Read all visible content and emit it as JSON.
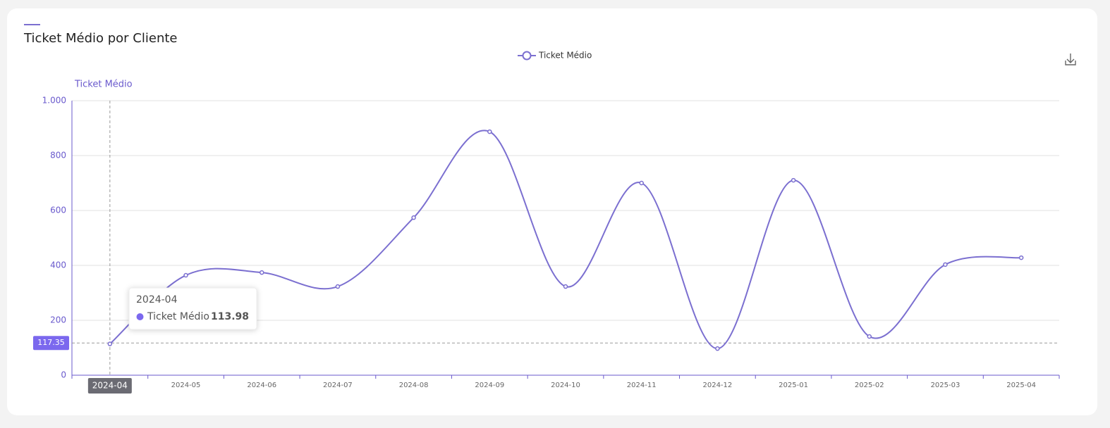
{
  "chart_data": {
    "type": "line",
    "title": "Ticket Médio por Cliente",
    "y_label": "Ticket Médio",
    "categories": [
      "2024-04",
      "2024-05",
      "2024-06",
      "2024-07",
      "2024-08",
      "2024-09",
      "2024-10",
      "2024-11",
      "2024-12",
      "2025-01",
      "2025-02",
      "2025-03",
      "2025-04"
    ],
    "series": [
      {
        "name": "Ticket Médio",
        "color": "#7b6fd0",
        "values": [
          113.98,
          364,
          374,
          323,
          574,
          887,
          323,
          700,
          97,
          710,
          141,
          403,
          428
        ]
      }
    ],
    "ylim": [
      0,
      1000
    ],
    "yticks": [
      0,
      200,
      400,
      600,
      800,
      {
        "value": 1000,
        "label": "1.000"
      }
    ],
    "grid": true,
    "smooth": true,
    "legend": "top",
    "axis_pointer": {
      "category_index": 0,
      "y": 117.35
    }
  }
}
